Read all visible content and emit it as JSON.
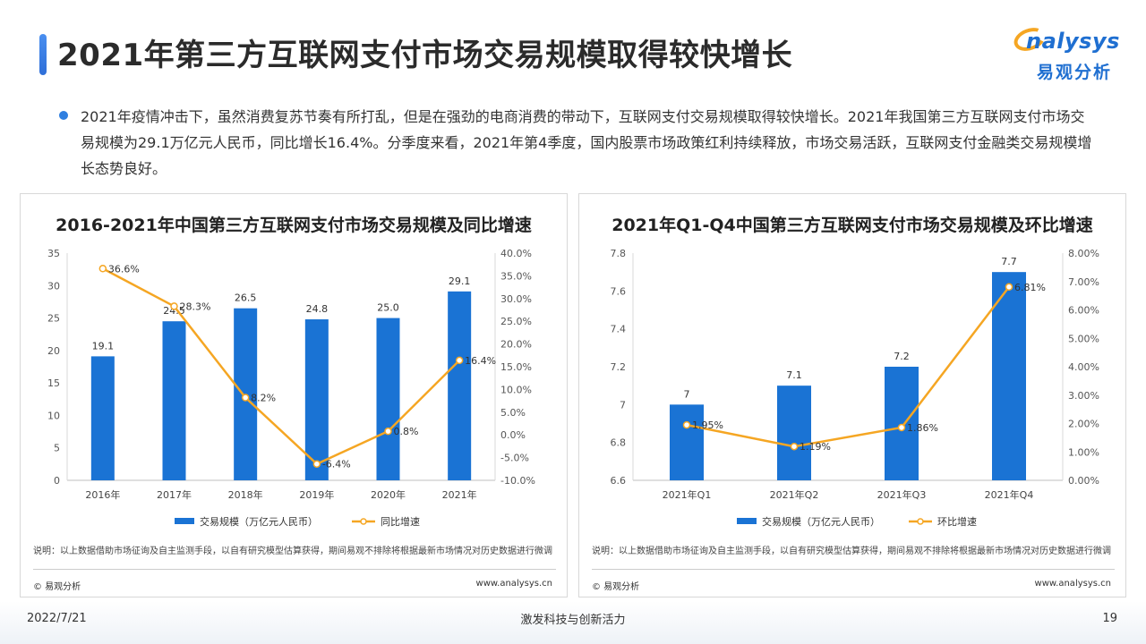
{
  "page": {
    "title": "2021年第三方互联网支付市场交易规模取得较快增长",
    "bullet": "2021年疫情冲击下，虽然消费复苏节奏有所打乱，但是在强劲的电商消费的带动下，互联网支付交易规模取得较快增长。2021年我国第三方互联网支付市场交易规模为29.1万亿元人民币，同比增长16.4%。分季度来看，2021年第4季度，国内股票市场政策红利持续释放，市场交易活跃，互联网支付金融类交易规模增长态势良好。"
  },
  "logo": {
    "text": "nalysys",
    "cn": "易观分析"
  },
  "panels": [
    {
      "note": "说明：以上数据借助市场征询及自主监测手段，以自有研究模型估算获得，期间易观不排除将根据最新市场情况对历史数据进行微调",
      "copyright": "© 易观分析",
      "website": "www.analysys.cn"
    },
    {
      "note": "说明：以上数据借助市场征询及自主监测手段，以自有研究模型估算获得，期间易观不排除将根据最新市场情况对历史数据进行微调",
      "copyright": "© 易观分析",
      "website": "www.analysys.cn"
    }
  ],
  "chart_data": [
    {
      "type": "bar",
      "title": "2016-2021年中国第三方互联网支付市场交易规模及同比增速",
      "categories": [
        "2016年",
        "2017年",
        "2018年",
        "2019年",
        "2020年",
        "2021年"
      ],
      "series": [
        {
          "name": "交易规模（万亿元人民币）",
          "type": "bar",
          "axis": "left",
          "values": [
            19.1,
            24.5,
            26.5,
            24.8,
            25.0,
            29.1
          ],
          "labels": [
            "19.1",
            "24.5",
            "26.5",
            "24.8",
            "25.0",
            "29.1"
          ],
          "color": "#1a73d4"
        },
        {
          "name": "同比增速",
          "type": "line",
          "axis": "right",
          "values": [
            36.6,
            28.3,
            8.2,
            -6.4,
            0.8,
            16.4
          ],
          "labels": [
            "36.6%",
            "28.3%",
            "8.2%",
            "-6.4%",
            "0.8%",
            "16.4%"
          ],
          "color": "#f5a623"
        }
      ],
      "y_left": {
        "min": 0,
        "max": 35,
        "ticks": [
          "0",
          "5",
          "10",
          "15",
          "20",
          "25",
          "30",
          "35"
        ]
      },
      "y_right": {
        "min": -10,
        "max": 40,
        "ticks": [
          "-10.0%",
          "-5.0%",
          "0.0%",
          "5.0%",
          "10.0%",
          "15.0%",
          "20.0%",
          "25.0%",
          "30.0%",
          "35.0%",
          "40.0%"
        ]
      },
      "legend": "bottom",
      "grid": false
    },
    {
      "type": "bar",
      "title": "2021年Q1-Q4中国第三方互联网支付市场交易规模及环比增速",
      "categories": [
        "2021年Q1",
        "2021年Q2",
        "2021年Q3",
        "2021年Q4"
      ],
      "series": [
        {
          "name": "交易规模（万亿元人民币）",
          "type": "bar",
          "axis": "left",
          "values": [
            7.0,
            7.1,
            7.2,
            7.7
          ],
          "labels": [
            "7",
            "7.1",
            "7.2",
            "7.7"
          ],
          "color": "#1a73d4"
        },
        {
          "name": "环比增速",
          "type": "line",
          "axis": "right",
          "values": [
            1.95,
            1.19,
            1.86,
            6.81
          ],
          "labels": [
            "1.95%",
            "1.19%",
            "1.86%",
            "6.81%"
          ],
          "color": "#f5a623"
        }
      ],
      "y_left": {
        "min": 6.6,
        "max": 7.8,
        "ticks": [
          "6.6",
          "6.8",
          "7",
          "7.2",
          "7.4",
          "7.6",
          "7.8"
        ]
      },
      "y_right": {
        "min": 0,
        "max": 8,
        "ticks": [
          "0.00%",
          "1.00%",
          "2.00%",
          "3.00%",
          "4.00%",
          "5.00%",
          "6.00%",
          "7.00%",
          "8.00%"
        ]
      },
      "legend": "bottom",
      "grid": false
    }
  ],
  "footer": {
    "date": "2022/7/21",
    "slogan": "激发科技与创新活力",
    "page": "19"
  }
}
